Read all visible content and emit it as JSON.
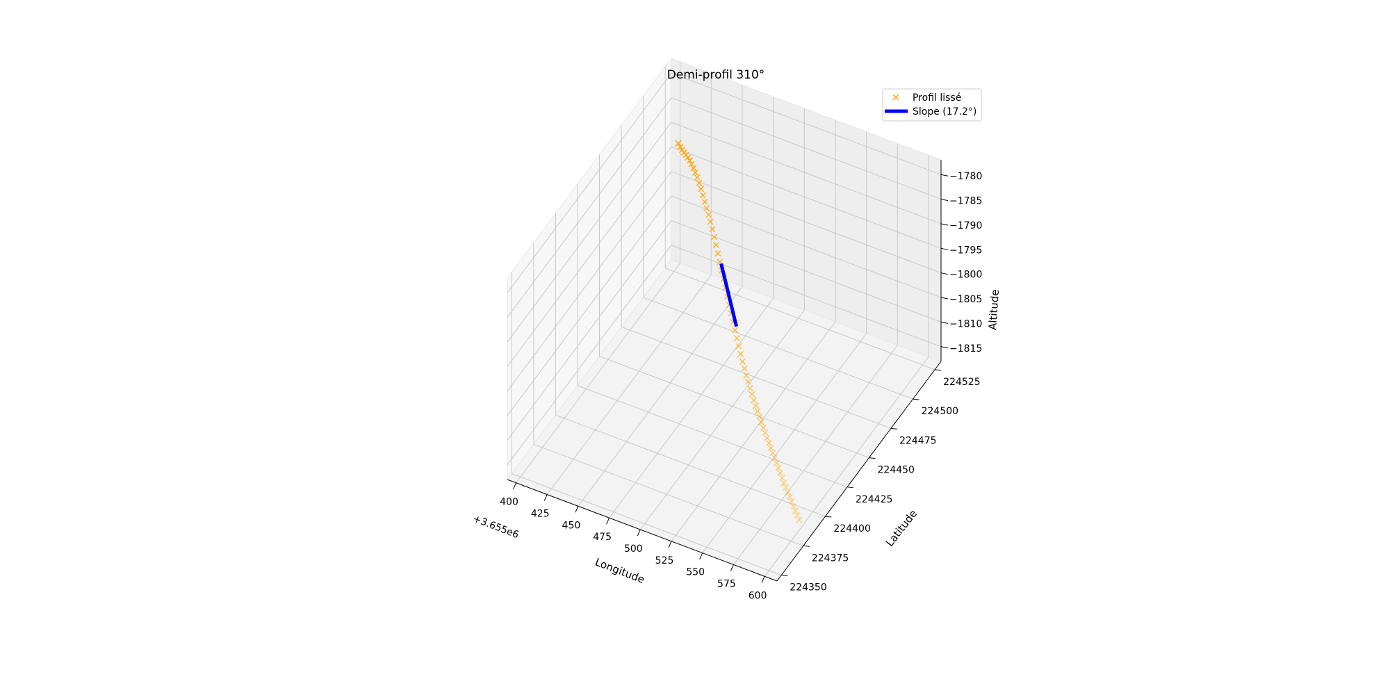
{
  "chart_data": {
    "type": "scatter",
    "projection": "3d",
    "title": "Demi-profil 310°",
    "xlabel": "Longitude",
    "ylabel": "Latitude",
    "zlabel": "Altitude",
    "x_offset_label": "+3.655e6",
    "xlim": [
      393,
      610
    ],
    "ylim": [
      224345,
      224532
    ],
    "zlim": [
      -1818,
      -1777
    ],
    "x_ticks": [
      400,
      425,
      450,
      475,
      500,
      525,
      550,
      575,
      600
    ],
    "y_ticks": [
      224350,
      224375,
      224400,
      224425,
      224450,
      224475,
      224500,
      224525
    ],
    "z_ticks": [
      -1780,
      -1785,
      -1790,
      -1795,
      -1800,
      -1805,
      -1810,
      -1815
    ],
    "x_tick_labels": [
      "400",
      "425",
      "450",
      "475",
      "500",
      "525",
      "550",
      "575",
      "600"
    ],
    "y_tick_labels": [
      "224350",
      "224375",
      "224400",
      "224425",
      "224450",
      "224475",
      "224500",
      "224525"
    ],
    "z_tick_labels": [
      "−1780",
      "−1785",
      "−1790",
      "−1795",
      "−1800",
      "−1805",
      "−1810",
      "−1815"
    ],
    "grid": true,
    "legend_position": "top-right",
    "series": [
      {
        "name": "Profil lissé",
        "kind": "scatter",
        "marker": "x",
        "color": "#FFA500",
        "start": [
          405,
          224523,
          -1791.0
        ],
        "end": [
          601,
          224383,
          -1815.5
        ],
        "z_values": [
          -1791.0,
          -1790.9,
          -1790.7,
          -1790.4,
          -1790.1,
          -1789.8,
          -1789.6,
          -1789.5,
          -1789.5,
          -1789.6,
          -1789.8,
          -1790.1,
          -1790.5,
          -1791.0,
          -1791.5,
          -1792.0,
          -1792.5,
          -1793.1,
          -1793.8,
          -1794.6,
          -1795.4,
          -1796.3,
          -1797.2,
          -1798.1,
          -1799.0,
          -1800.0,
          -1801.0,
          -1801.9,
          -1802.8,
          -1803.7,
          -1804.6,
          -1805.4,
          -1806.2,
          -1807.0,
          -1807.7,
          -1808.3,
          -1808.9,
          -1809.4,
          -1809.9,
          -1810.3,
          -1810.7,
          -1811.0,
          -1811.3,
          -1811.6,
          -1811.9,
          -1812.2,
          -1812.4,
          -1812.7,
          -1812.9,
          -1813.1,
          -1813.3,
          -1813.5,
          -1813.7,
          -1813.9,
          -1814.1,
          -1814.3,
          -1814.5,
          -1814.6,
          -1814.8,
          -1814.9,
          -1815.0,
          -1815.2,
          -1815.3,
          -1815.4,
          -1815.5
        ]
      },
      {
        "name": "Slope (17.2°)",
        "kind": "line",
        "color": "#0000FF",
        "start": [
          474,
          224474,
          -1797.2
        ],
        "end": [
          499,
          224456,
          -1803.3
        ]
      }
    ]
  }
}
